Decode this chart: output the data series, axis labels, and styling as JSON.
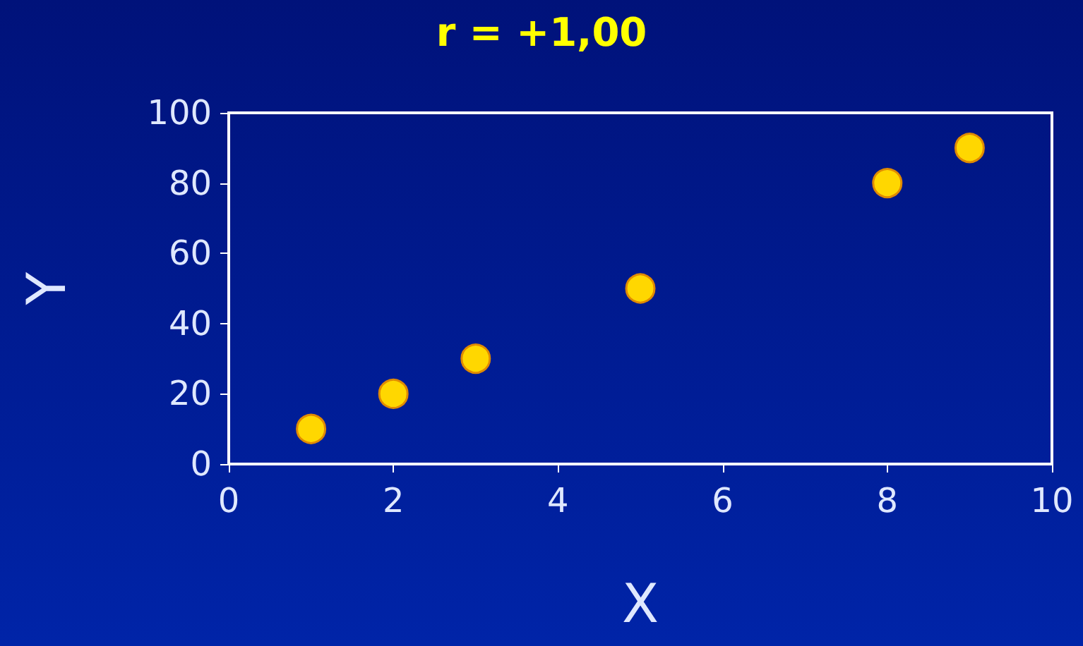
{
  "chart_data": {
    "type": "scatter",
    "title": "r = +1,00",
    "xlabel": "X",
    "ylabel": "Y",
    "x": [
      1,
      2,
      3,
      5,
      8,
      9
    ],
    "values": [
      10,
      20,
      30,
      50,
      80,
      90
    ],
    "color": "#ffd700",
    "marker": "circle",
    "xlim": [
      0,
      10
    ],
    "xticks": [
      0,
      2,
      4,
      6,
      8,
      10
    ],
    "ylim": [
      0,
      100
    ],
    "yticks": [
      0,
      20,
      40,
      60,
      80,
      100
    ],
    "grid": false
  }
}
